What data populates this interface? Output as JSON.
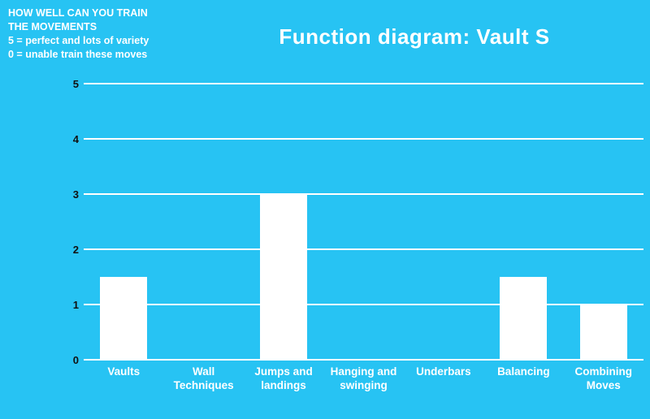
{
  "annotation": {
    "lines": [
      "HOW WELL CAN YOU TRAIN",
      "THE MOVEMENTS",
      "5 = perfect and lots of variety",
      "0 = unable train these moves"
    ]
  },
  "title": "Function diagram: Vault S",
  "colors": {
    "background": "#27c3f3",
    "bar": "#ffffff",
    "gridline": "#ffffff",
    "tick_text": "#111111",
    "label_text": "#ffffff"
  },
  "chart_data": {
    "type": "bar",
    "title": "Function diagram: Vault S",
    "categories": [
      "Vaults",
      "Wall Techniques",
      "Jumps and landings",
      "Hanging and swinging",
      "Underbars",
      "Balancing",
      "Combining Moves"
    ],
    "values": [
      1.5,
      0,
      3,
      0,
      0,
      1.5,
      1
    ],
    "xlabel": "",
    "ylabel": "",
    "ylim": [
      0,
      5
    ],
    "yticks": [
      0,
      1,
      2,
      3,
      4,
      5
    ],
    "grid": true,
    "legend": false
  }
}
